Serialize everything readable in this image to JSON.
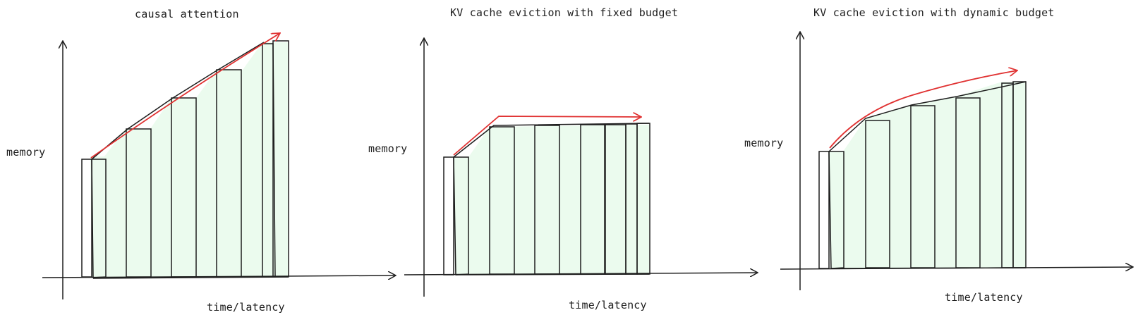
{
  "panels": [
    {
      "title": "causal attention",
      "ylabel": "memory",
      "xlabel": "time/latency"
    },
    {
      "title": "KV cache eviction with fixed budget",
      "ylabel": "memory",
      "xlabel": "time/latency"
    },
    {
      "title": "KV cache eviction with dynamic budget",
      "ylabel": "memory",
      "xlabel": "time/latency"
    }
  ],
  "colors": {
    "stroke": "#1e1e1e",
    "arrow": "#e03131",
    "fill": "#ebfbee"
  }
}
